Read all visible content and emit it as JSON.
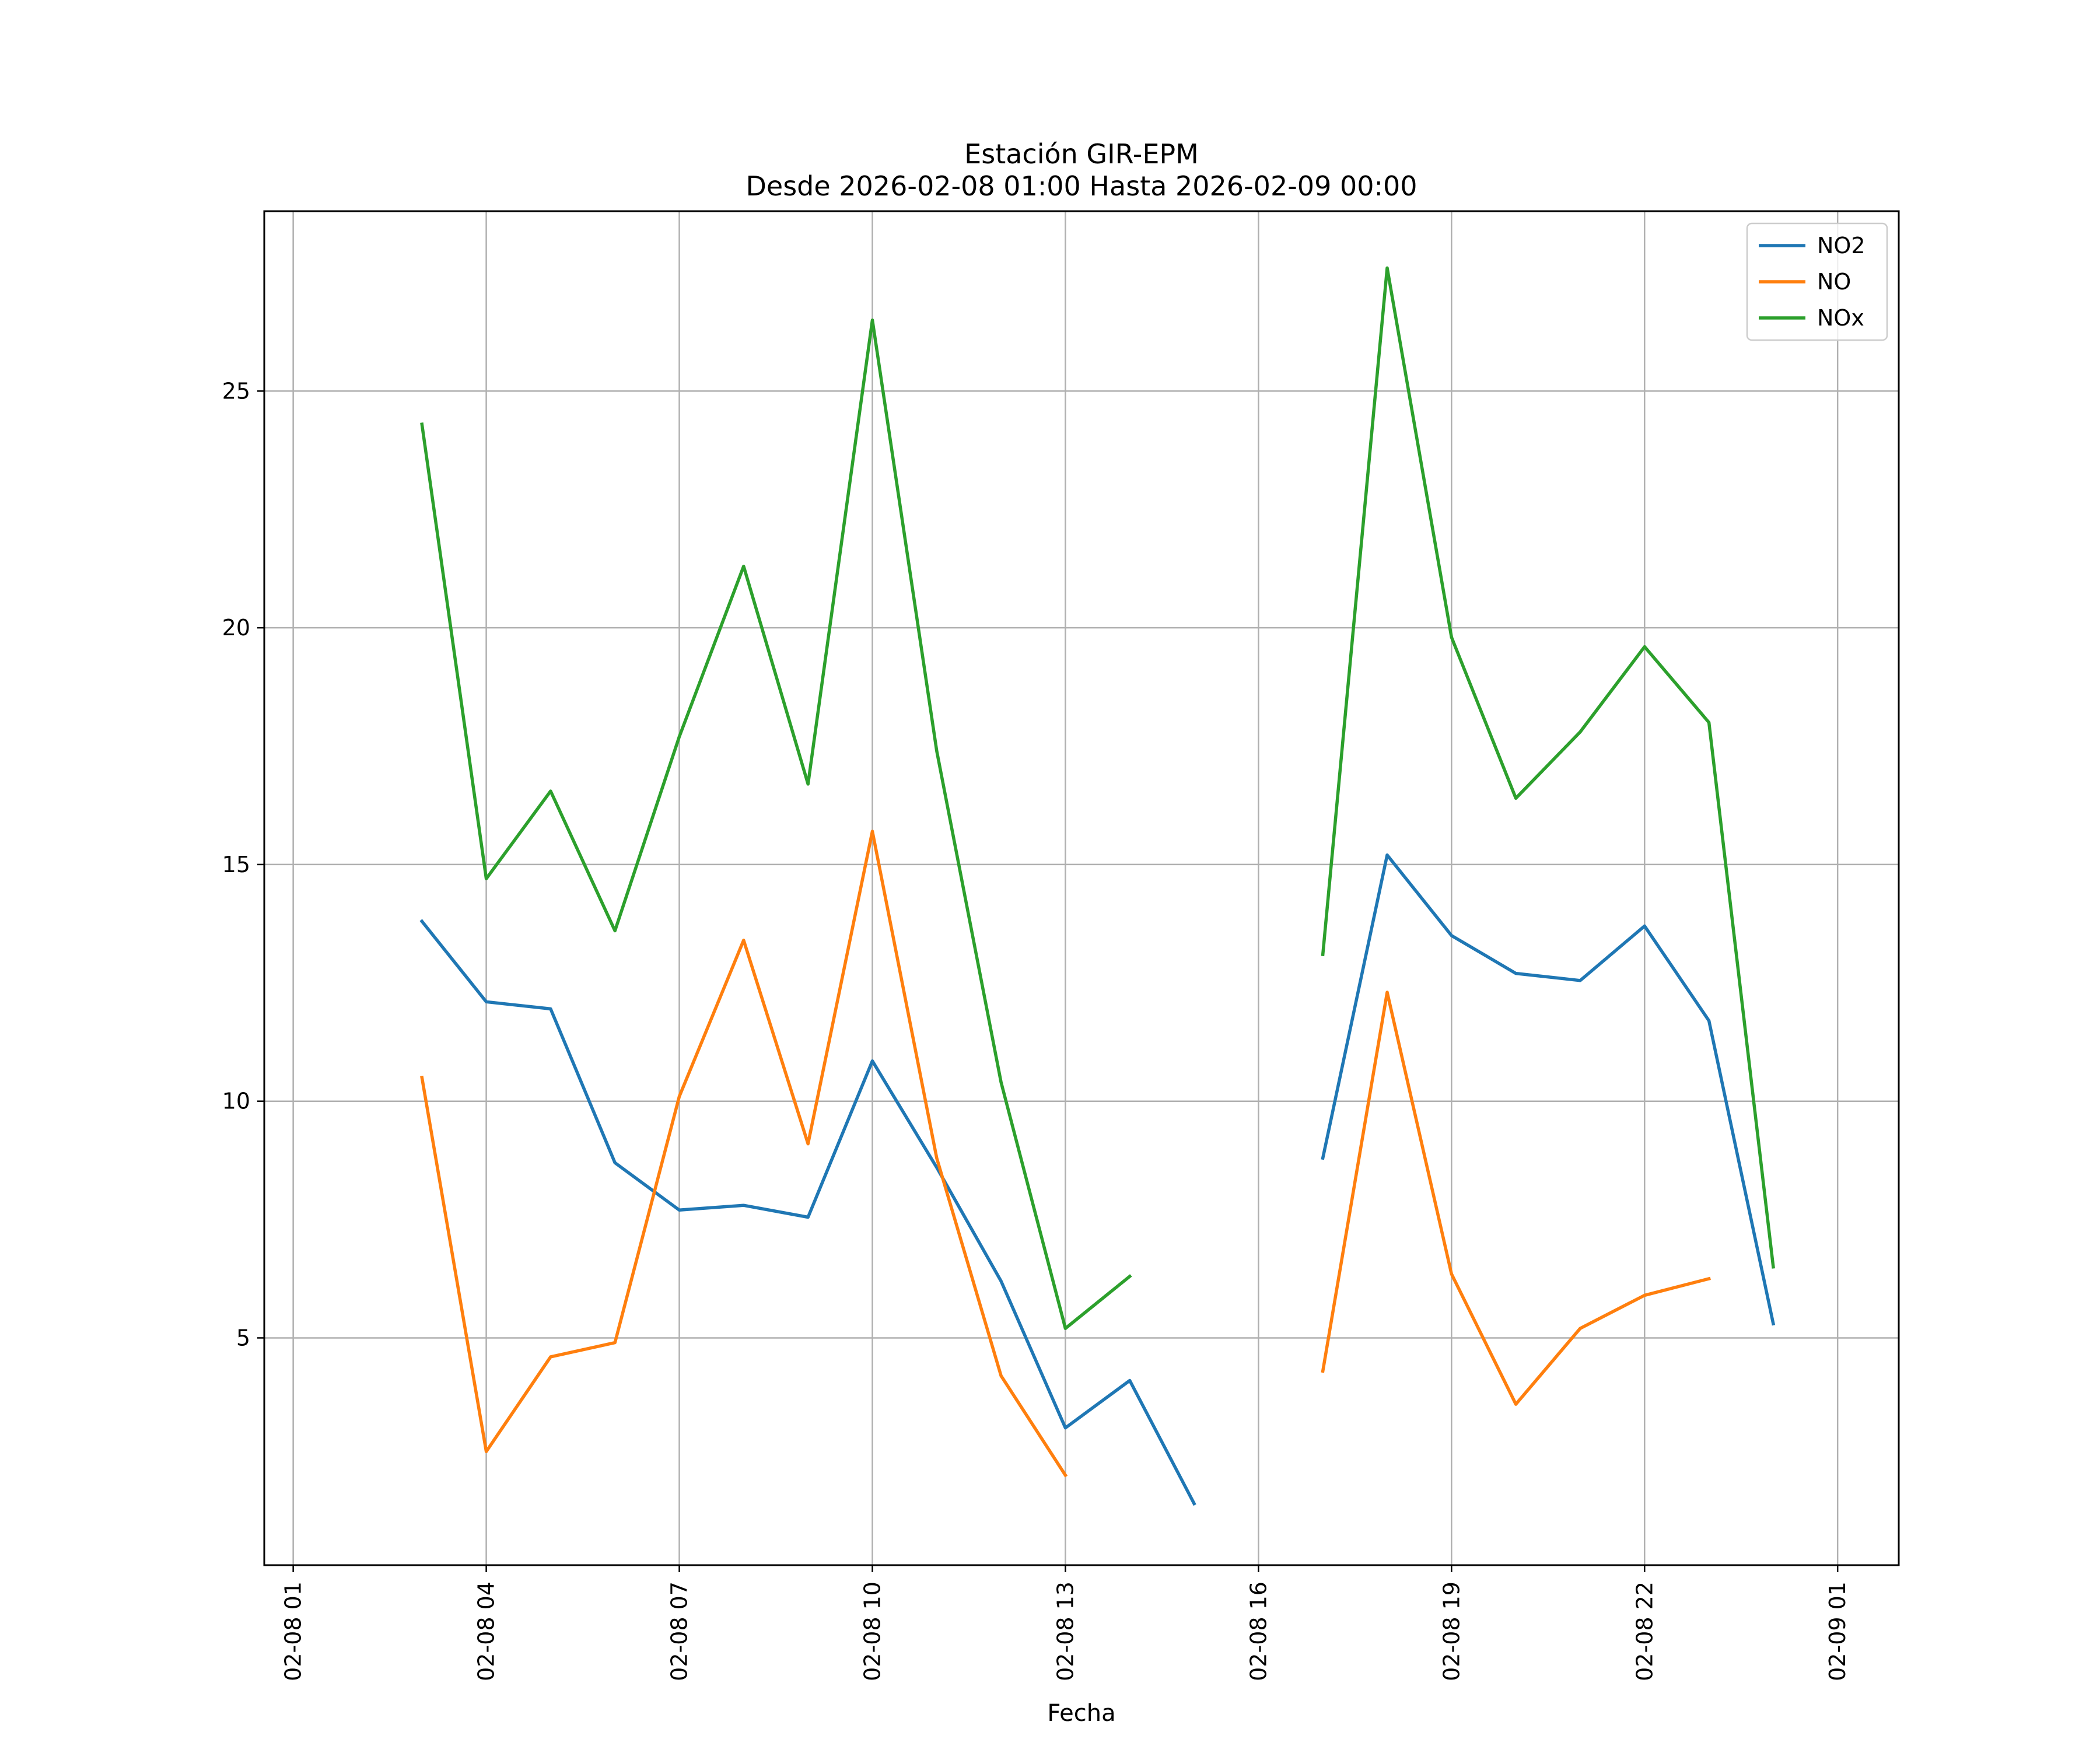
{
  "chart_data": {
    "type": "line",
    "title": "Estación GIR-EPM",
    "subtitle": "Desde 2026-02-08 01:00 Hasta 2026-02-09 00:00",
    "xlabel": "Fecha",
    "ylabel": "",
    "x_unit": "hour",
    "x_start": "2026-02-08 00:00",
    "x_range_hours": [
      0.55,
      25.95
    ],
    "ylim": [
      0.2,
      28.8
    ],
    "grid": true,
    "legend_position": "top-right",
    "x_ticks": [
      {
        "hour": 1,
        "label": "02-08 01"
      },
      {
        "hour": 4,
        "label": "02-08 04"
      },
      {
        "hour": 7,
        "label": "02-08 07"
      },
      {
        "hour": 10,
        "label": "02-08 10"
      },
      {
        "hour": 13,
        "label": "02-08 13"
      },
      {
        "hour": 16,
        "label": "02-08 16"
      },
      {
        "hour": 19,
        "label": "02-08 19"
      },
      {
        "hour": 22,
        "label": "02-08 22"
      },
      {
        "hour": 25,
        "label": "02-09 01"
      }
    ],
    "y_ticks": [
      {
        "value": 5,
        "label": "5"
      },
      {
        "value": 10,
        "label": "10"
      },
      {
        "value": 15,
        "label": "15"
      },
      {
        "value": 20,
        "label": "20"
      },
      {
        "value": 25,
        "label": "25"
      }
    ],
    "x_hours": [
      3,
      4,
      5,
      6,
      7,
      8,
      9,
      10,
      11,
      12,
      13,
      14,
      15,
      16,
      17,
      18,
      19,
      20,
      21,
      22,
      23,
      24
    ],
    "series": [
      {
        "name": "NO2",
        "color": "#1f77b4",
        "values": [
          13.8,
          12.1,
          11.95,
          8.7,
          7.7,
          7.8,
          7.55,
          10.85,
          8.6,
          6.2,
          3.1,
          4.1,
          1.5,
          null,
          8.8,
          15.2,
          13.5,
          12.7,
          12.55,
          13.7,
          11.7,
          5.3
        ]
      },
      {
        "name": "NO",
        "color": "#ff7f0e",
        "values": [
          10.5,
          2.6,
          4.6,
          4.9,
          10.1,
          13.4,
          9.1,
          15.7,
          8.8,
          4.2,
          2.1,
          null,
          null,
          null,
          4.3,
          12.3,
          6.35,
          3.6,
          5.2,
          5.9,
          6.25,
          null
        ]
      },
      {
        "name": "NOx",
        "color": "#2ca02c",
        "values": [
          24.3,
          14.7,
          16.55,
          13.6,
          17.7,
          21.3,
          16.7,
          26.5,
          17.4,
          10.4,
          5.2,
          6.3,
          null,
          null,
          13.1,
          27.6,
          19.8,
          16.4,
          17.8,
          19.6,
          18.0,
          6.5
        ]
      }
    ]
  }
}
